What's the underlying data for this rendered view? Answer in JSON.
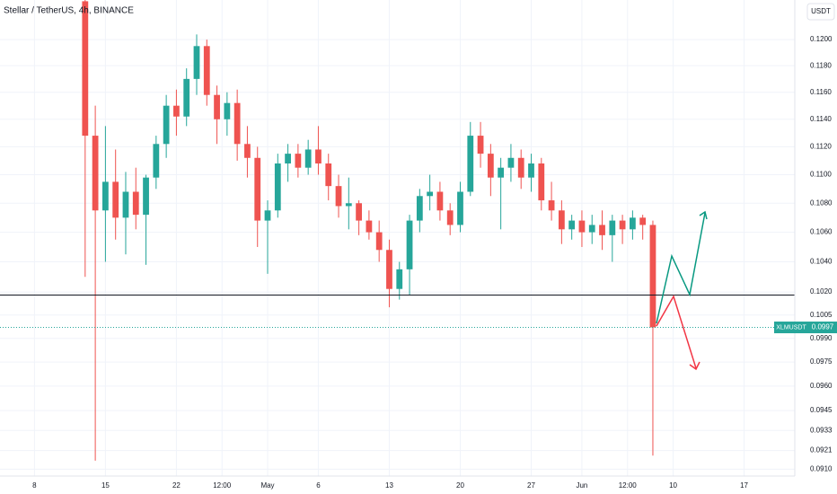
{
  "chart_data": {
    "type": "candlestick",
    "title": "Stellar / TetherUS, 4h, BINANCE",
    "currency": "USDT",
    "symbol": "XLMUSDT",
    "current_price": 0.0997,
    "level": 0.1018,
    "log_scale": true,
    "grid": true,
    "up_color": "#26a69a",
    "down_color": "#ef5350",
    "x": [
      13,
      14,
      15,
      16,
      17,
      18,
      19,
      20,
      21,
      22,
      23,
      24,
      25,
      26,
      27,
      28,
      29,
      30,
      31,
      32,
      33,
      34,
      35,
      36,
      37,
      38,
      39,
      40,
      41,
      42,
      43,
      44,
      45,
      46,
      47,
      48,
      49,
      50,
      51,
      52,
      53,
      54,
      55,
      56,
      57,
      58,
      59,
      60,
      61,
      62,
      63,
      64,
      65,
      66,
      67,
      68,
      69
    ],
    "open": [
      0.123,
      0.1128,
      0.1075,
      0.1095,
      0.107,
      0.1088,
      0.1072,
      0.1098,
      0.1122,
      0.115,
      0.1142,
      0.117,
      0.1195,
      0.1158,
      0.114,
      0.1152,
      0.1122,
      0.1112,
      0.1068,
      0.1075,
      0.1108,
      0.1115,
      0.1105,
      0.1118,
      0.1108,
      0.1092,
      0.1078,
      0.108,
      0.1068,
      0.106,
      0.1048,
      0.1022,
      0.1035,
      0.1068,
      0.1085,
      0.1088,
      0.1075,
      0.1065,
      0.1088,
      0.1128,
      0.1115,
      0.1098,
      0.1105,
      0.1112,
      0.1098,
      0.1108,
      0.1082,
      0.1075,
      0.1062,
      0.1068,
      0.106,
      0.1065,
      0.1058,
      0.1068,
      0.1062,
      0.107,
      0.1065
    ],
    "high": [
      0.1231,
      0.115,
      0.1135,
      0.1118,
      0.1102,
      0.1105,
      0.11,
      0.1128,
      0.1158,
      0.1162,
      0.1178,
      0.1204,
      0.12,
      0.1165,
      0.116,
      0.1162,
      0.1135,
      0.112,
      0.1082,
      0.1115,
      0.1122,
      0.1122,
      0.1125,
      0.1135,
      0.1115,
      0.11,
      0.1098,
      0.1082,
      0.1075,
      0.1068,
      0.1055,
      0.104,
      0.1072,
      0.109,
      0.11,
      0.1095,
      0.108,
      0.1095,
      0.1138,
      0.1138,
      0.1122,
      0.1112,
      0.1122,
      0.1118,
      0.1115,
      0.1112,
      0.1095,
      0.1082,
      0.1072,
      0.1075,
      0.1072,
      0.1075,
      0.1072,
      0.1072,
      0.1075,
      0.1072,
      0.1068
    ],
    "low": [
      0.103,
      0.0915,
      0.104,
      0.1055,
      0.1045,
      0.1062,
      0.1038,
      0.109,
      0.1112,
      0.1128,
      0.1135,
      0.1158,
      0.115,
      0.1122,
      0.1128,
      0.111,
      0.1098,
      0.105,
      0.1032,
      0.107,
      0.1095,
      0.1098,
      0.11,
      0.11,
      0.1082,
      0.107,
      0.1062,
      0.1058,
      0.1055,
      0.104,
      0.101,
      0.1015,
      0.1018,
      0.106,
      0.1075,
      0.1068,
      0.1058,
      0.106,
      0.1085,
      0.1105,
      0.1085,
      0.1062,
      0.1095,
      0.109,
      0.1088,
      0.1075,
      0.1068,
      0.1052,
      0.1055,
      0.105,
      0.1052,
      0.1048,
      0.104,
      0.1052,
      0.1055,
      0.1055,
      0.0918
    ],
    "close": [
      0.1128,
      0.1075,
      0.1095,
      0.107,
      0.1088,
      0.1072,
      0.1098,
      0.1122,
      0.115,
      0.1142,
      0.117,
      0.1195,
      0.1158,
      0.114,
      0.1152,
      0.1122,
      0.1112,
      0.1068,
      0.1075,
      0.1108,
      0.1115,
      0.1105,
      0.1118,
      0.1108,
      0.1092,
      0.1078,
      0.108,
      0.1068,
      0.106,
      0.1048,
      0.1022,
      0.1035,
      0.1068,
      0.1085,
      0.1088,
      0.1075,
      0.1065,
      0.1088,
      0.1128,
      0.1115,
      0.1098,
      0.1105,
      0.1112,
      0.1098,
      0.1108,
      0.1082,
      0.1075,
      0.1062,
      0.1068,
      0.106,
      0.1065,
      0.1058,
      0.1068,
      0.1062,
      0.107,
      0.1065,
      0.0997
    ],
    "xlim": [
      4.6,
      83
    ],
    "xticks": [
      {
        "value": 8,
        "label": "8"
      },
      {
        "value": 15,
        "label": "15"
      },
      {
        "value": 22,
        "label": "22"
      },
      {
        "value": 26.5,
        "label": "12:00"
      },
      {
        "value": 31,
        "label": "May"
      },
      {
        "value": 36,
        "label": "6"
      },
      {
        "value": 43,
        "label": "13"
      },
      {
        "value": 50,
        "label": "20"
      },
      {
        "value": 57,
        "label": "27"
      },
      {
        "value": 62,
        "label": "Jun"
      },
      {
        "value": 66.5,
        "label": "12:00"
      },
      {
        "value": 71,
        "label": "10"
      },
      {
        "value": 78,
        "label": "17"
      }
    ],
    "ylim": [
      0.0906,
      0.1231
    ],
    "yticks": [
      {
        "value": 0.12,
        "label": "0.1200"
      },
      {
        "value": 0.118,
        "label": "0.1180"
      },
      {
        "value": 0.116,
        "label": "0.1160"
      },
      {
        "value": 0.114,
        "label": "0.1140"
      },
      {
        "value": 0.112,
        "label": "0.1120"
      },
      {
        "value": 0.11,
        "label": "0.1100"
      },
      {
        "value": 0.108,
        "label": "0.1080"
      },
      {
        "value": 0.106,
        "label": "0.1060"
      },
      {
        "value": 0.104,
        "label": "0.1040"
      },
      {
        "value": 0.102,
        "label": "0.1020"
      },
      0.1005,
      {
        "value": 0.099,
        "label": "0.0990"
      },
      0.0975,
      {
        "value": 0.096,
        "label": "0.0960"
      },
      0.0945,
      0.0933,
      0.0921,
      {
        "value": 0.091,
        "label": "0.0910"
      }
    ]
  }
}
